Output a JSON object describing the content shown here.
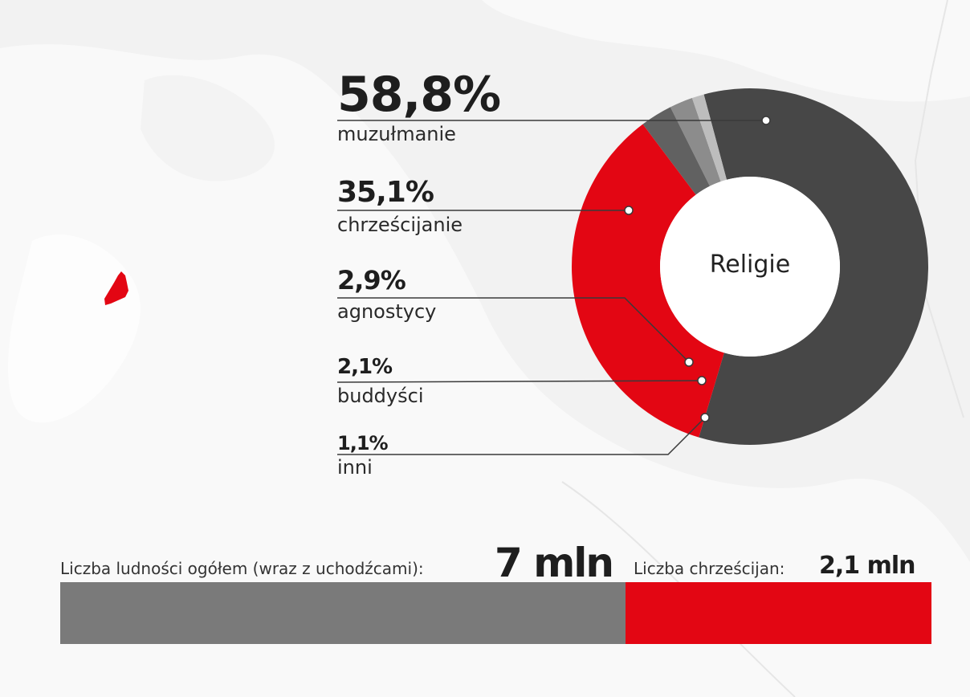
{
  "chart_data": {
    "type": "pie",
    "title": "Religie",
    "series": [
      {
        "category": "muzułmanie",
        "value": 58.8,
        "label": "58,8%",
        "color": "#474747"
      },
      {
        "category": "chrześcijanie",
        "value": 35.1,
        "label": "35,1%",
        "color": "#e30613"
      },
      {
        "category": "agnostycy",
        "value": 2.9,
        "label": "2,9%",
        "color": "#616161"
      },
      {
        "category": "buddyści",
        "value": 2.1,
        "label": "2,1%",
        "color": "#8c8c8c"
      },
      {
        "category": "inni",
        "value": 1.1,
        "label": "1,1%",
        "color": "#bdbdbd"
      }
    ]
  },
  "population": {
    "total_label": "Liczba ludności ogółem (wraz z uchodźcami):",
    "total_value": "7 mln",
    "total_number": 7,
    "christians_label": "Liczba chrześcijan:",
    "christians_value": "2,1 mln",
    "christians_number": 2.1,
    "bar_colors": {
      "rest": "#7a7a7a",
      "christians": "#e30613"
    }
  },
  "map": {
    "highlight_color": "#e30613"
  }
}
